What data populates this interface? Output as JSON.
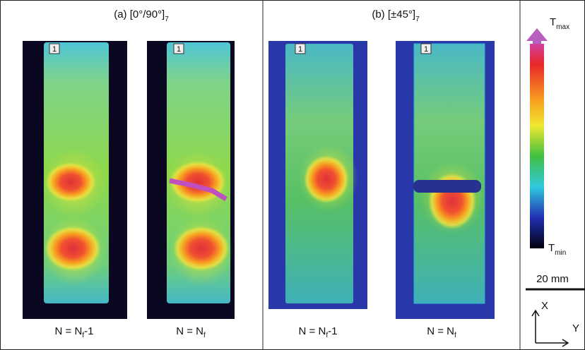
{
  "panels": [
    {
      "title": "(a) [0°/90°]",
      "title_sub": "7",
      "images": [
        {
          "tag": "1",
          "label": "N = N",
          "label_sub": "f",
          "label_suffix": "-1"
        },
        {
          "tag": "1",
          "label": "N = N",
          "label_sub": "f"
        }
      ]
    },
    {
      "title": "(b) [±45°]",
      "title_sub": "7",
      "images": [
        {
          "tag": "1",
          "label": "N = N",
          "label_sub": "f",
          "label_suffix": "-1"
        },
        {
          "tag": "1",
          "label": "N = N",
          "label_sub": "f"
        }
      ]
    }
  ],
  "colorbar": {
    "max_label": "T",
    "max_sub": "max",
    "min_label": "T",
    "min_sub": "min"
  },
  "scale_bar": "20 mm",
  "axes": {
    "x": "X",
    "y": "Y"
  }
}
